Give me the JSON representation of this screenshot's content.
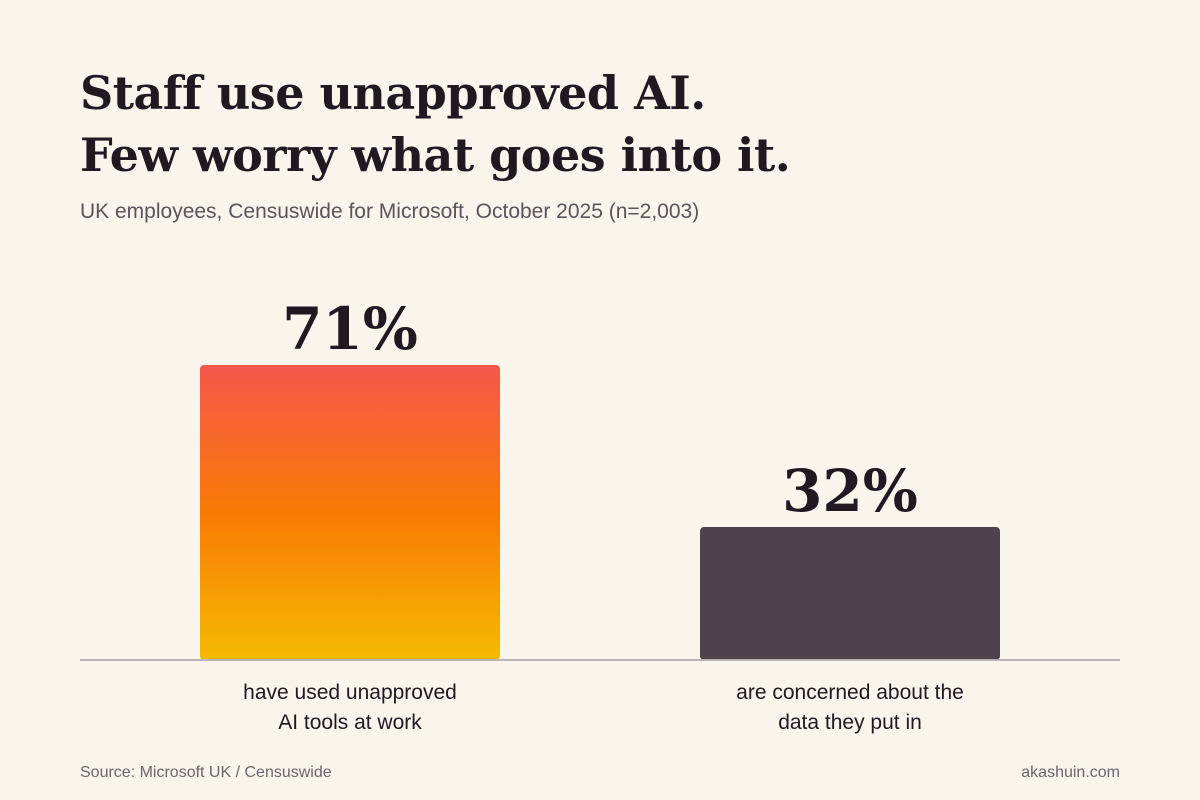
{
  "title_lines": [
    "Staff use unapproved AI.",
    "Few worry what goes into it."
  ],
  "subtitle": "UK employees, Censuswide for Microsoft, October 2025 (n=2,003)",
  "chart_data": {
    "type": "bar",
    "title": "Staff use unapproved AI. Few worry what goes into it.",
    "categories": [
      [
        "have used unapproved",
        "AI tools at work"
      ],
      [
        "are concerned about the",
        "data they put in"
      ]
    ],
    "values": [
      71,
      32
    ],
    "value_labels": [
      "71%",
      "32%"
    ],
    "unit": "%",
    "ylim": [
      0,
      100
    ],
    "grid": false,
    "legend": "none",
    "colors": {
      "bar_1_gradient": [
        "#f4574c",
        "#f97a05",
        "#f4ba02"
      ],
      "bar_2": "#4e424b",
      "baseline": "#b9b5b3"
    }
  },
  "footer": {
    "source": "Source: Microsoft UK / Censuswide",
    "credit": "akashuin.com"
  }
}
